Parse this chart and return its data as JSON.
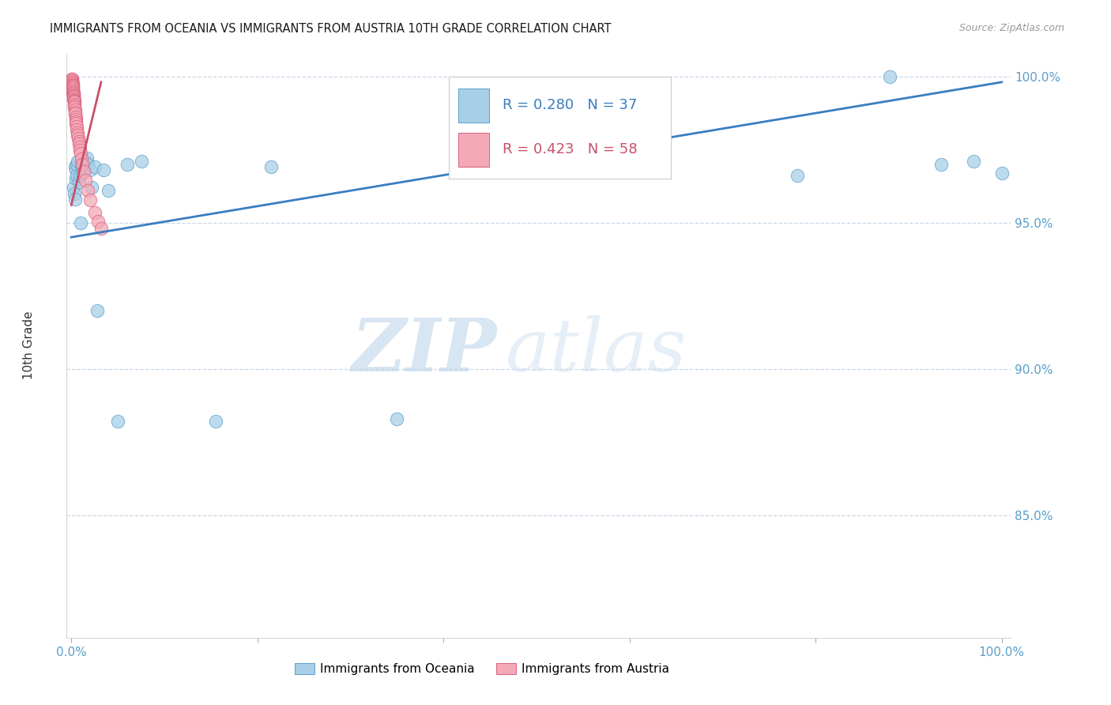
{
  "title": "IMMIGRANTS FROM OCEANIA VS IMMIGRANTS FROM AUSTRIA 10TH GRADE CORRELATION CHART",
  "source": "Source: ZipAtlas.com",
  "ylabel": "10th Grade",
  "legend_blue_r": "R = 0.280",
  "legend_blue_n": "N = 37",
  "legend_pink_r": "R = 0.423",
  "legend_pink_n": "N = 58",
  "legend_label_blue": "Immigrants from Oceania",
  "legend_label_pink": "Immigrants from Austria",
  "blue_fill": "#a8cfe8",
  "pink_fill": "#f4a9b8",
  "blue_edge": "#5b9ec9",
  "pink_edge": "#d9607a",
  "blue_line": "#3a7dbf",
  "pink_line": "#c8506a",
  "watermark_zip": "ZIP",
  "watermark_atlas": "atlas",
  "blue_scatter_x": [
    0.002,
    0.003,
    0.004,
    0.004,
    0.005,
    0.005,
    0.006,
    0.006,
    0.007,
    0.008,
    0.009,
    0.01,
    0.011,
    0.012,
    0.013,
    0.014,
    0.015,
    0.017,
    0.018,
    0.02,
    0.022,
    0.025,
    0.028,
    0.035,
    0.04,
    0.05,
    0.06,
    0.075,
    0.155,
    0.215,
    0.35,
    0.6,
    0.78,
    0.88,
    0.935,
    0.97,
    1.0
  ],
  "blue_scatter_y": [
    0.962,
    0.96,
    0.969,
    0.958,
    0.968,
    0.965,
    0.97,
    0.966,
    0.971,
    0.964,
    0.966,
    0.95,
    0.97,
    0.967,
    0.971,
    0.97,
    0.971,
    0.972,
    0.97,
    0.968,
    0.962,
    0.969,
    0.92,
    0.968,
    0.961,
    0.882,
    0.97,
    0.971,
    0.882,
    0.969,
    0.883,
    0.971,
    0.966,
    1.0,
    0.97,
    0.971,
    0.967
  ],
  "pink_scatter_x": [
    0.0003,
    0.0004,
    0.0005,
    0.0006,
    0.0007,
    0.0008,
    0.0009,
    0.001,
    0.001,
    0.0011,
    0.0012,
    0.0013,
    0.0014,
    0.0015,
    0.0016,
    0.0017,
    0.0018,
    0.0019,
    0.002,
    0.0021,
    0.0022,
    0.0023,
    0.0024,
    0.0025,
    0.0026,
    0.0027,
    0.0028,
    0.0029,
    0.003,
    0.0032,
    0.0034,
    0.0036,
    0.0038,
    0.004,
    0.0042,
    0.0045,
    0.0048,
    0.005,
    0.0053,
    0.0056,
    0.006,
    0.0065,
    0.007,
    0.0075,
    0.008,
    0.0085,
    0.009,
    0.0095,
    0.01,
    0.011,
    0.012,
    0.013,
    0.015,
    0.0175,
    0.02,
    0.025,
    0.029,
    0.032
  ],
  "pink_scatter_y": [
    0.999,
    0.9985,
    0.998,
    0.9985,
    0.999,
    0.998,
    0.9985,
    0.998,
    0.9975,
    0.9975,
    0.997,
    0.997,
    0.9965,
    0.996,
    0.996,
    0.9955,
    0.995,
    0.9945,
    0.9945,
    0.994,
    0.9938,
    0.9935,
    0.9932,
    0.993,
    0.9925,
    0.992,
    0.9918,
    0.9915,
    0.9912,
    0.9905,
    0.9898,
    0.9892,
    0.9885,
    0.9878,
    0.9872,
    0.9862,
    0.9852,
    0.9845,
    0.9838,
    0.9828,
    0.9818,
    0.9808,
    0.9798,
    0.9788,
    0.9778,
    0.9768,
    0.9758,
    0.9748,
    0.9738,
    0.9718,
    0.9698,
    0.9675,
    0.9645,
    0.961,
    0.9578,
    0.9535,
    0.9505,
    0.948
  ],
  "blue_trend_x": [
    0.0,
    1.0
  ],
  "blue_trend_y": [
    0.945,
    0.998
  ],
  "pink_trend_x": [
    0.0,
    0.032
  ],
  "pink_trend_y": [
    0.956,
    0.998
  ],
  "xlim": [
    -0.005,
    1.01
  ],
  "ylim": [
    0.808,
    1.008
  ],
  "ytick_vals": [
    0.85,
    0.9,
    0.95,
    1.0
  ],
  "ytick_labels": [
    "85.0%",
    "90.0%",
    "95.0%",
    "100.0%"
  ],
  "xtick_vals": [
    0.0,
    0.2,
    0.4,
    0.6,
    0.8,
    1.0
  ],
  "xtick_labels": [
    "0.0%",
    "",
    "",
    "",
    "",
    "100.0%"
  ]
}
